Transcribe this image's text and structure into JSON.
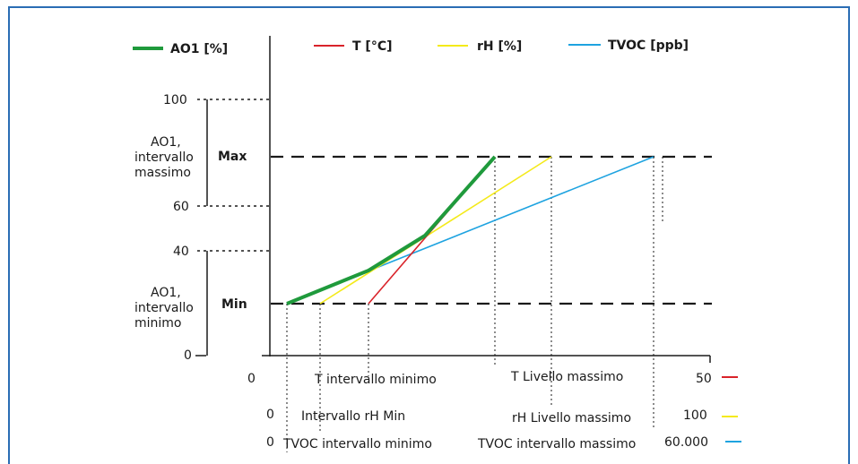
{
  "colors": {
    "frame": "#2a6db4",
    "ao1": "#1f9a3c",
    "t": "#d9232a",
    "rh": "#f4ea1a",
    "tvoc": "#1ea3e0",
    "axis": "#1a1a1a"
  },
  "legend": {
    "ao1": "AO1 [%]",
    "t": "T [°C]",
    "rh": "rH [%]",
    "tvoc": "TVOC [ppb]"
  },
  "y_axis": {
    "ticks": [
      "100",
      "60",
      "40",
      "0"
    ],
    "max_label": "Max",
    "min_label": "Min",
    "range_max_label": [
      "AO1,",
      "intervallo",
      "massimo"
    ],
    "range_min_label": [
      "AO1,",
      "intervallo",
      "minimo"
    ]
  },
  "x_axis": {
    "zero": "0",
    "t_min": "T intervallo minimo",
    "t_max": "T Livello massimo",
    "t_end": "50",
    "rh_zero": "0",
    "rh_min": "Intervallo rH Min",
    "rh_max": "rH Livello massimo",
    "rh_end": "100",
    "tvoc_zero": "0",
    "tvoc_min": "TVOC intervallo minimo",
    "tvoc_max": "TVOC  intervallo massimo",
    "tvoc_end": "60.000"
  }
}
